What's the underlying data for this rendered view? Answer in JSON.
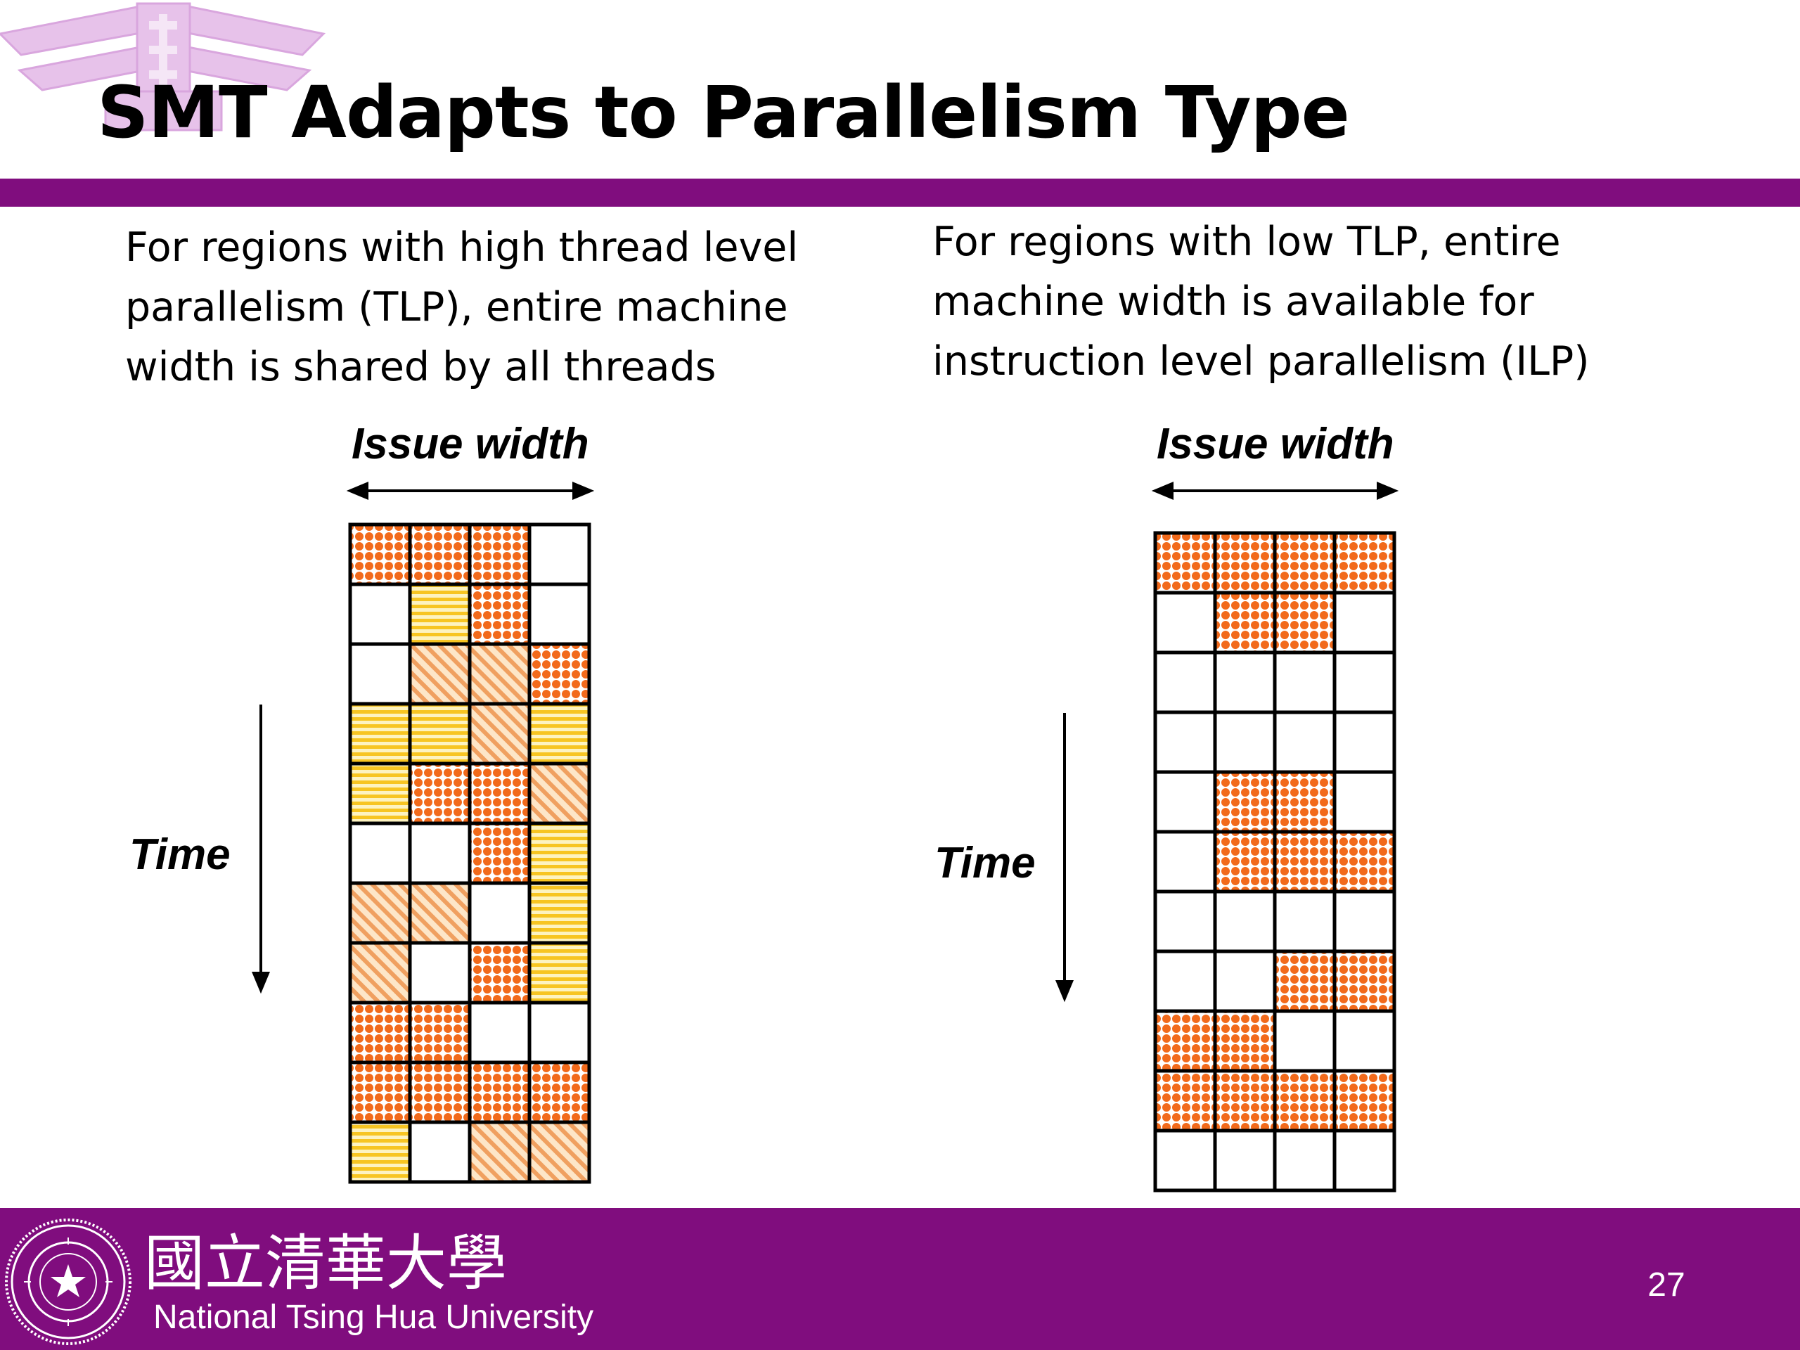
{
  "slide": {
    "title": "SMT Adapts to Parallelism Type",
    "page_number": "27",
    "footer_university_en": "National Tsing Hua University",
    "footer_university_zh": "國立清華大學",
    "accent_color": "#800d7e"
  },
  "left_panel": {
    "text_lines": [
      "For regions with high thread level",
      "parallelism (TLP), entire machine",
      "width is shared by all threads"
    ],
    "issue_width_label": "Issue width",
    "time_label": "Time",
    "grid_rows": [
      [
        "D",
        "D",
        "D",
        "E"
      ],
      [
        "E",
        "H",
        "D",
        "E"
      ],
      [
        "E",
        "S",
        "S",
        "D"
      ],
      [
        "H",
        "H",
        "S",
        "H"
      ],
      [
        "H",
        "D",
        "D",
        "S"
      ],
      [
        "E",
        "E",
        "D",
        "H"
      ],
      [
        "S",
        "S",
        "E",
        "H"
      ],
      [
        "S",
        "E",
        "D",
        "H"
      ],
      [
        "D",
        "D",
        "E",
        "E"
      ],
      [
        "D",
        "D",
        "D",
        "D"
      ],
      [
        "H",
        "E",
        "S",
        "S"
      ]
    ]
  },
  "right_panel": {
    "text_lines": [
      "For regions with low TLP, entire",
      "machine width is available for",
      "instruction level parallelism (ILP)"
    ],
    "issue_width_label": "Issue width",
    "time_label": "Time",
    "grid_rows": [
      [
        "D",
        "D",
        "D",
        "D"
      ],
      [
        "E",
        "D",
        "D",
        "E"
      ],
      [
        "E",
        "E",
        "E",
        "E"
      ],
      [
        "E",
        "E",
        "E",
        "E"
      ],
      [
        "E",
        "D",
        "D",
        "E"
      ],
      [
        "E",
        "D",
        "D",
        "D"
      ],
      [
        "E",
        "E",
        "E",
        "E"
      ],
      [
        "E",
        "E",
        "D",
        "D"
      ],
      [
        "D",
        "D",
        "E",
        "E"
      ],
      [
        "D",
        "D",
        "D",
        "D"
      ],
      [
        "E",
        "E",
        "E",
        "E"
      ]
    ]
  },
  "legend_codes": {
    "D": "orange-dotted-thread",
    "H": "yellow-striped-thread",
    "S": "orange-diagonal-thread",
    "E": "empty-slot"
  },
  "colors": {
    "orange": "#f26a1b",
    "yellow": "#f7c522",
    "diagonal": "#f0a060"
  }
}
